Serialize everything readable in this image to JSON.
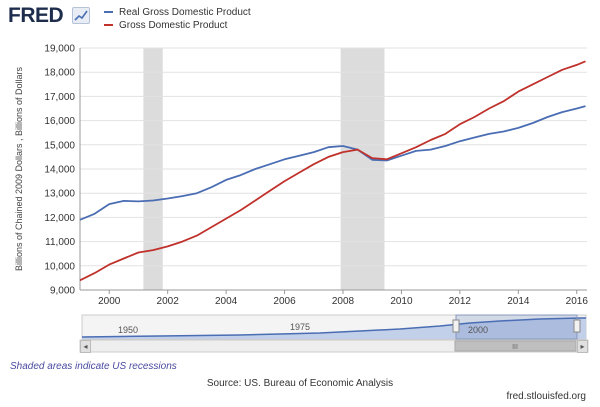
{
  "header": {
    "logo_text": "FRED",
    "logo_icon": "trend-line-icon"
  },
  "legend": [
    {
      "label": "Real Gross Domestic Product",
      "color": "#4a6db3"
    },
    {
      "label": "Gross Domestic Product",
      "color": "#c0312b"
    }
  ],
  "chart_data": {
    "type": "line",
    "title": "",
    "xlabel": "",
    "ylabel": "Billions of Chained 2009 Dollars , Billions of Dollars",
    "xlim": [
      1999.0,
      2016.35
    ],
    "ylim": [
      9000,
      19000
    ],
    "x_ticks": [
      2000,
      2002,
      2004,
      2006,
      2008,
      2010,
      2012,
      2014,
      2016
    ],
    "y_ticks": [
      9000,
      10000,
      11000,
      12000,
      13000,
      14000,
      15000,
      16000,
      17000,
      18000,
      19000
    ],
    "y_tick_labels": [
      "9,000",
      "10,000",
      "11,000",
      "12,000",
      "13,000",
      "14,000",
      "15,000",
      "16,000",
      "17,000",
      "18,000",
      "19,000"
    ],
    "x_tick_labels": [
      "2000",
      "2002",
      "2004",
      "2006",
      "2008",
      "2010",
      "2012",
      "2014",
      "2016"
    ],
    "recessions": [
      [
        2001.17,
        2001.83
      ],
      [
        2007.92,
        2009.42
      ]
    ],
    "grid": true,
    "series": [
      {
        "name": "Real Gross Domestic Product",
        "color": "#4a6db3",
        "x": [
          1999.0,
          1999.5,
          2000.0,
          2000.5,
          2001.0,
          2001.5,
          2002.0,
          2002.5,
          2003.0,
          2003.5,
          2004.0,
          2004.5,
          2005.0,
          2005.5,
          2006.0,
          2006.5,
          2007.0,
          2007.5,
          2008.0,
          2008.5,
          2009.0,
          2009.5,
          2010.0,
          2010.5,
          2011.0,
          2011.5,
          2012.0,
          2012.5,
          2013.0,
          2013.5,
          2014.0,
          2014.5,
          2015.0,
          2015.5,
          2016.0,
          2016.3
        ],
        "values": [
          11900,
          12150,
          12550,
          12680,
          12660,
          12700,
          12780,
          12880,
          13000,
          13250,
          13550,
          13750,
          14000,
          14200,
          14400,
          14550,
          14700,
          14900,
          14950,
          14800,
          14380,
          14350,
          14550,
          14750,
          14800,
          14950,
          15150,
          15300,
          15450,
          15550,
          15700,
          15900,
          16150,
          16350,
          16500,
          16600
        ]
      },
      {
        "name": "Gross Domestic Product",
        "color": "#c0312b",
        "x": [
          1999.0,
          1999.5,
          2000.0,
          2000.5,
          2001.0,
          2001.5,
          2002.0,
          2002.5,
          2003.0,
          2003.5,
          2004.0,
          2004.5,
          2005.0,
          2005.5,
          2006.0,
          2006.5,
          2007.0,
          2007.5,
          2008.0,
          2008.5,
          2009.0,
          2009.5,
          2010.0,
          2010.5,
          2011.0,
          2011.5,
          2012.0,
          2012.5,
          2013.0,
          2013.5,
          2014.0,
          2014.5,
          2015.0,
          2015.5,
          2016.0,
          2016.3
        ],
        "values": [
          9400,
          9700,
          10050,
          10300,
          10550,
          10650,
          10800,
          11000,
          11250,
          11600,
          11950,
          12300,
          12700,
          13100,
          13500,
          13850,
          14200,
          14500,
          14700,
          14800,
          14450,
          14400,
          14650,
          14900,
          15200,
          15450,
          15850,
          16150,
          16500,
          16800,
          17200,
          17500,
          17800,
          18100,
          18300,
          18450
        ]
      }
    ]
  },
  "navigator": {
    "labels": [
      "1950",
      "1975",
      "2000"
    ],
    "scrollbar_grip": "III",
    "left_arrow": "◂",
    "right_arrow": "▸"
  },
  "footer": {
    "recession_note": "Shaded areas indicate US recessions",
    "source": "Source: US. Bureau of Economic Analysis",
    "credit": "fred.stlouisfed.org"
  }
}
